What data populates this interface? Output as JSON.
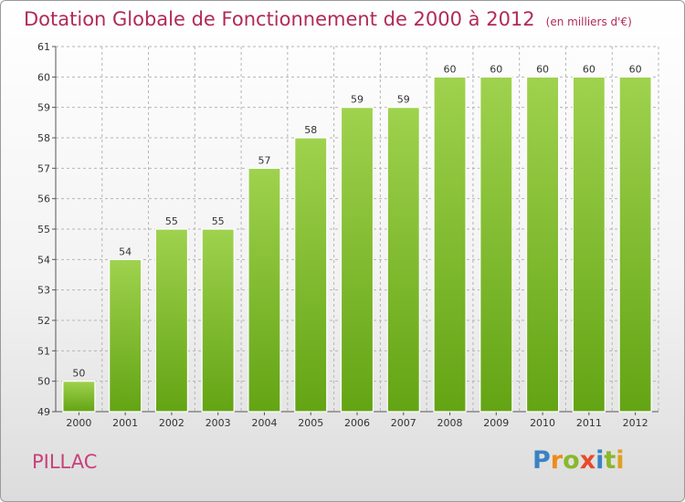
{
  "title": "Dotation Globale de Fonctionnement de 2000 à 2012",
  "unit_note": "(en milliers d'€)",
  "commune": "PILLAC",
  "logo": [
    "P",
    "r",
    "o",
    "x",
    "i",
    "t",
    "i"
  ],
  "colors": {
    "bar_light": "#9fd24e",
    "bar_dark": "#63a414",
    "title": "#b02a5a",
    "grid": "#b5b5b5"
  },
  "chart_data": {
    "type": "bar",
    "title": "Dotation Globale de Fonctionnement de 2000 à 2012",
    "subtitle": "(en milliers d'€)",
    "categories": [
      "2000",
      "2001",
      "2002",
      "2003",
      "2004",
      "2005",
      "2006",
      "2007",
      "2008",
      "2009",
      "2010",
      "2011",
      "2012"
    ],
    "values": [
      50,
      54,
      55,
      55,
      57,
      58,
      59,
      59,
      60,
      60,
      60,
      60,
      60
    ],
    "ylim": [
      49,
      61
    ],
    "yticks": [
      49,
      50,
      51,
      52,
      53,
      54,
      55,
      56,
      57,
      58,
      59,
      60,
      61
    ],
    "grid": true,
    "data_labels": true,
    "xlabel": "",
    "ylabel": ""
  }
}
